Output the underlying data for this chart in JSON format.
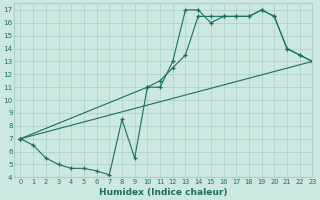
{
  "xlabel": "Humidex (Indice chaleur)",
  "bg_color": "#cce8e0",
  "grid_color": "#aacfc8",
  "line_color": "#1a6e60",
  "xlim": [
    -0.5,
    23
  ],
  "ylim": [
    4,
    17.5
  ],
  "xticks": [
    0,
    1,
    2,
    3,
    4,
    5,
    6,
    7,
    8,
    9,
    10,
    11,
    12,
    13,
    14,
    15,
    16,
    17,
    18,
    19,
    20,
    21,
    22,
    23
  ],
  "yticks": [
    4,
    5,
    6,
    7,
    8,
    9,
    10,
    11,
    12,
    13,
    14,
    15,
    16,
    17
  ],
  "line1_x": [
    0,
    1,
    2,
    3,
    4,
    5,
    6,
    7,
    8,
    9,
    10,
    11,
    12,
    13,
    14,
    15,
    16,
    17,
    18,
    19,
    20,
    21,
    22,
    23
  ],
  "line1_y": [
    7,
    6.5,
    5.5,
    5.0,
    4.7,
    4.7,
    4.5,
    4.2,
    8.5,
    5.5,
    11.0,
    11.0,
    13.0,
    17.0,
    17.0,
    16.0,
    16.5,
    16.5,
    16.5,
    17.0,
    16.5,
    14.0,
    13.5,
    13.0
  ],
  "line2_x": [
    0,
    10,
    11,
    12,
    13,
    14,
    15,
    16,
    17,
    18,
    19,
    20,
    21,
    22,
    23
  ],
  "line2_y": [
    7,
    11.0,
    11.5,
    12.5,
    13.5,
    16.5,
    16.5,
    16.5,
    16.5,
    16.5,
    17.0,
    16.5,
    14.0,
    13.5,
    13.0
  ],
  "line3_x": [
    0,
    23
  ],
  "line3_y": [
    7,
    13.0
  ]
}
